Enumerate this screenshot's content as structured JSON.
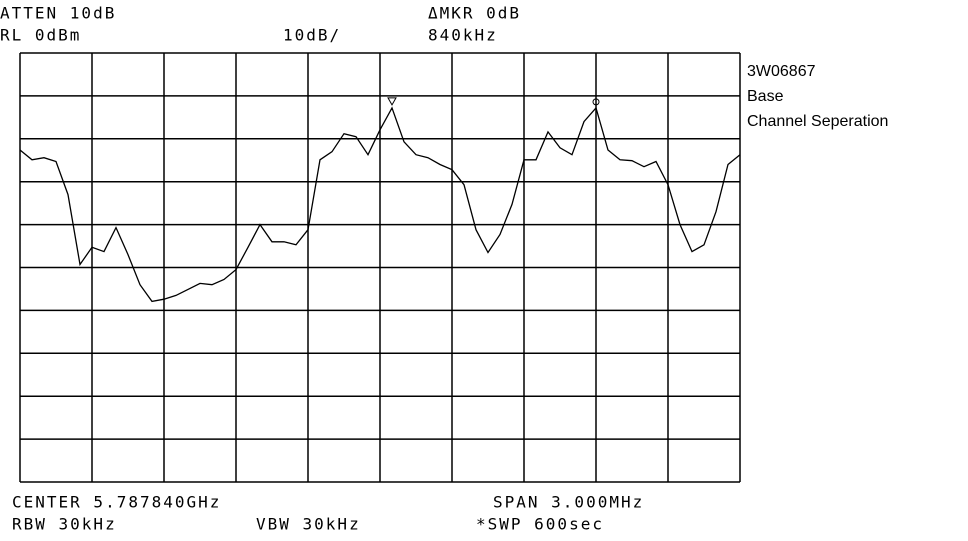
{
  "chart_data": {
    "type": "line",
    "header": {
      "atten": "ATTEN 10dB",
      "ref_level": "RL 0dBm",
      "scale": "10dB/",
      "delta_marker": "ΔMKR 0dB",
      "delta_freq": "840kHz"
    },
    "notes": [
      "3W06867",
      "Base",
      "Channel Seperation"
    ],
    "footer": {
      "center": "CENTER 5.787840GHz",
      "span": "SPAN 3.000MHz",
      "rbw": "RBW 30kHz",
      "vbw": "VBW 30kHz",
      "sweep": "*SWP 600sec"
    },
    "ylim": [
      -100,
      0
    ],
    "grid": true,
    "color": "#000000",
    "marker_points": [
      31,
      48
    ],
    "values": [
      -22.6,
      -24.9,
      -24.4,
      -25.3,
      -33.0,
      -49.3,
      -45.3,
      -46.3,
      -40.7,
      -47.0,
      -54.0,
      -57.9,
      -57.4,
      -56.5,
      -55.1,
      -53.7,
      -54.0,
      -52.8,
      -50.5,
      -45.3,
      -40.0,
      -44.0,
      -44.0,
      -44.7,
      -41.2,
      -24.9,
      -23.0,
      -18.8,
      -19.5,
      -23.7,
      -17.9,
      -12.8,
      -20.7,
      -23.7,
      -24.4,
      -26.0,
      -27.2,
      -30.7,
      -41.2,
      -46.5,
      -42.3,
      -35.3,
      -24.9,
      -24.9,
      -18.4,
      -22.1,
      -23.7,
      -16.0,
      -12.8,
      -22.6,
      -24.9,
      -25.1,
      -26.5,
      -25.3,
      -30.7,
      -40.0,
      -46.3,
      -44.7,
      -37.0,
      -26.0,
      -23.7
    ]
  }
}
